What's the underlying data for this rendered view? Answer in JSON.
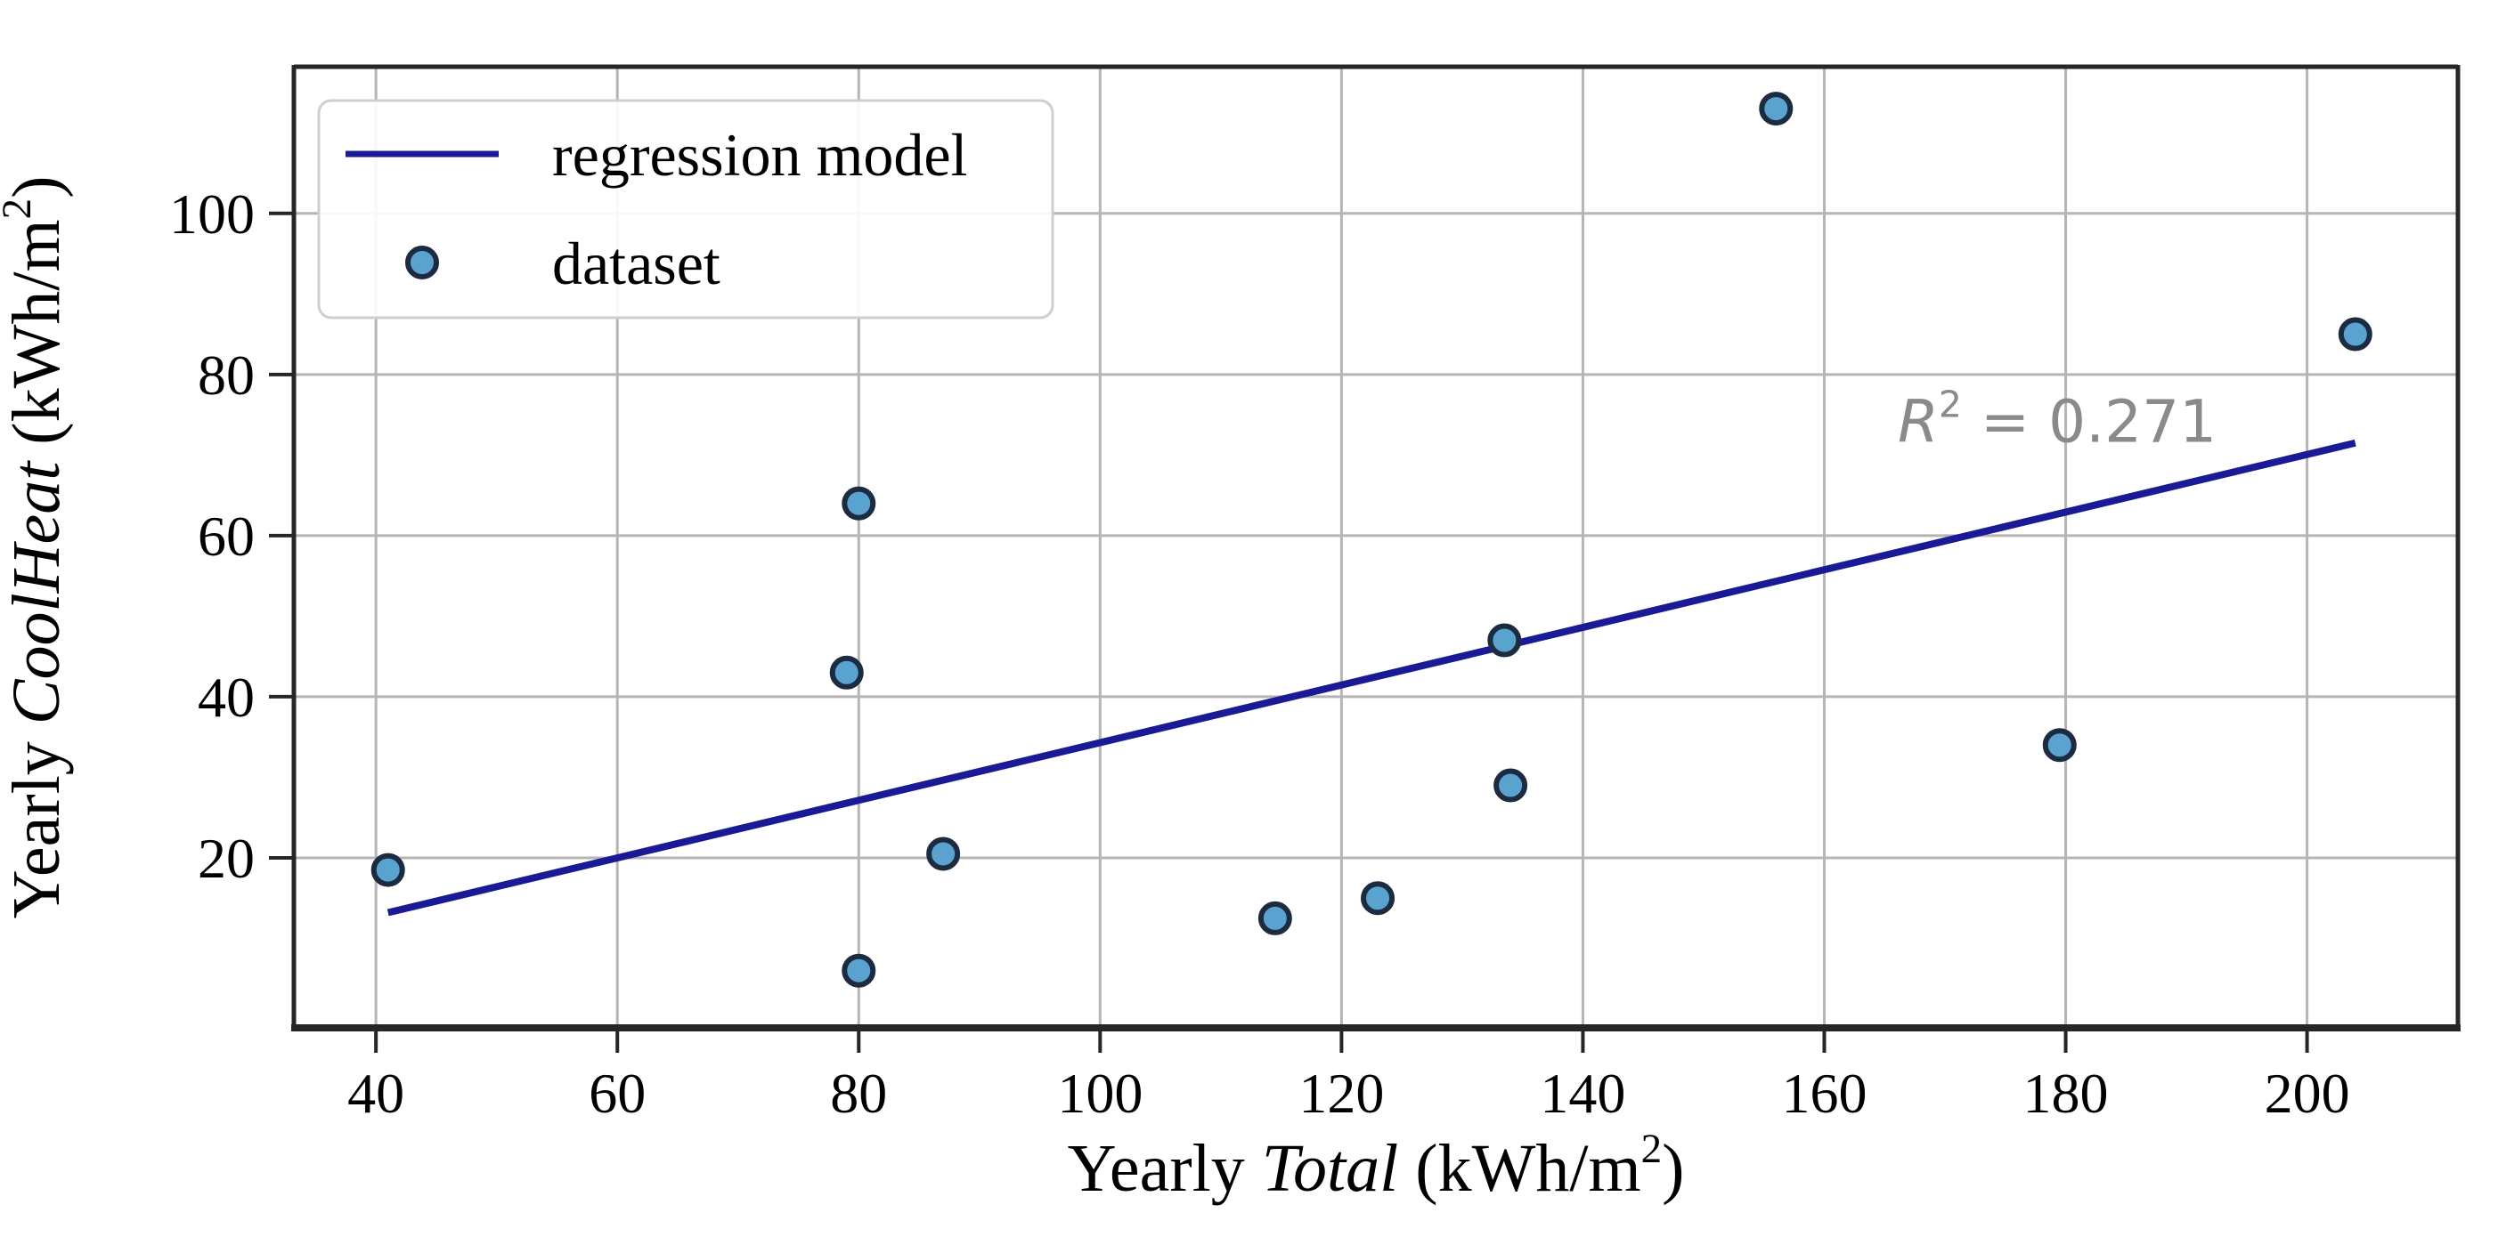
{
  "figure": {
    "background": "#ffffff",
    "legend": {
      "border_color": "#cfcfcf",
      "fill": "#ffffff",
      "entries": [
        {
          "label": "regression model",
          "type": "line"
        },
        {
          "label": "dataset",
          "type": "marker"
        }
      ]
    },
    "xlabel_parts": [
      {
        "t": "Yearly ",
        "s": "normal"
      },
      {
        "t": "Total",
        "s": "italic"
      },
      {
        "t": " (kWh/m",
        "s": "normal"
      },
      {
        "t": "2",
        "s": "sup"
      },
      {
        "t": ")",
        "s": "normal"
      }
    ],
    "ylabel_parts": [
      {
        "t": "Yearly ",
        "s": "normal"
      },
      {
        "t": "CoolHeat",
        "s": "italic"
      },
      {
        "t": " (kWh/m",
        "s": "normal"
      },
      {
        "t": "2",
        "s": "sup"
      },
      {
        "t": ")",
        "s": "normal"
      }
    ],
    "annotation_parts": [
      {
        "t": "R",
        "s": "italic"
      },
      {
        "t": "2",
        "s": "sup"
      },
      {
        "t": " = 0.271",
        "s": "normal"
      }
    ],
    "colors": {
      "regression_line": "#1a1a96",
      "marker_face": "#5aa2d0",
      "marker_edge": "#1c2b40",
      "grid": "#b5b5b5",
      "spine": "#262626",
      "tick_label": "#000000",
      "annotation": "#8a8a8a"
    }
  },
  "chart_data": {
    "type": "scatter",
    "title": "",
    "xlabel": "Yearly Total (kWh/m²)",
    "ylabel": "Yearly CoolHeat (kWh/m²)",
    "xlim": [
      33.2,
      212.5
    ],
    "ylim": [
      -1.1,
      118.2
    ],
    "x_ticks": [
      40,
      60,
      80,
      100,
      120,
      140,
      160,
      180,
      200
    ],
    "y_ticks": [
      20,
      40,
      60,
      80,
      100
    ],
    "x_tick_labels": [
      "40",
      "60",
      "80",
      "100",
      "120",
      "140",
      "160",
      "180",
      "200"
    ],
    "y_tick_labels": [
      "20",
      "40",
      "60",
      "80",
      "100"
    ],
    "grid": true,
    "legend_position": "upper left",
    "series": [
      {
        "name": "dataset",
        "type": "scatter",
        "points": [
          [
            41,
            18.5
          ],
          [
            79,
            43
          ],
          [
            80,
            64
          ],
          [
            80,
            6
          ],
          [
            87,
            20.5
          ],
          [
            114.5,
            12.5
          ],
          [
            123,
            15
          ],
          [
            133.5,
            47
          ],
          [
            134,
            29
          ],
          [
            156,
            113
          ],
          [
            179.5,
            34
          ],
          [
            204,
            85
          ]
        ]
      },
      {
        "name": "regression model",
        "type": "line",
        "points": [
          [
            41,
            13.2
          ],
          [
            204,
            71.5
          ]
        ]
      }
    ],
    "annotation": {
      "text": "R² = 0.271",
      "x": 179.3,
      "y": 74.2,
      "r_squared": 0.271
    }
  }
}
